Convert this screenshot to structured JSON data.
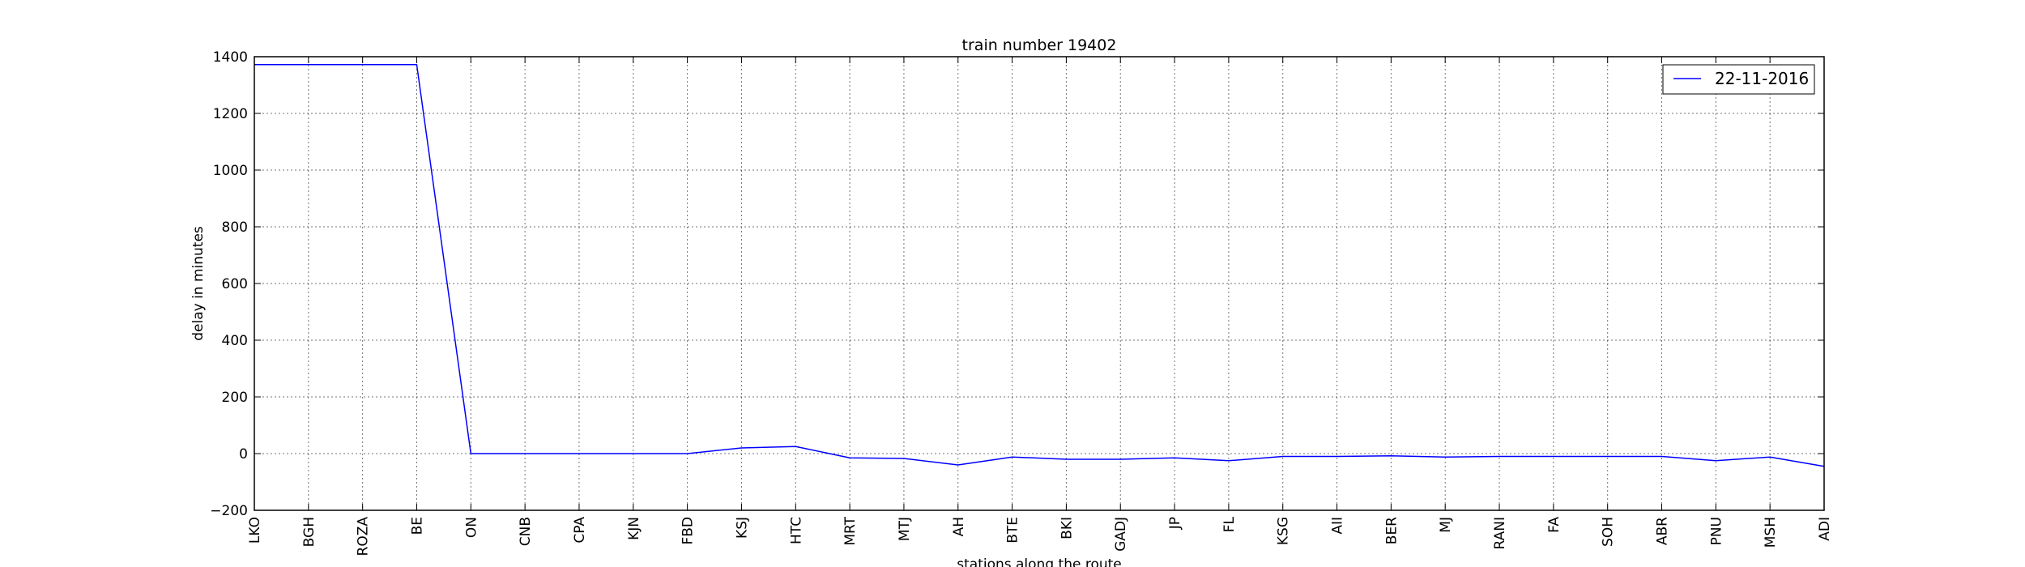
{
  "chart_data": {
    "type": "line",
    "title": "train number 19402",
    "xlabel": "stations along the route",
    "ylabel": "delay in minutes",
    "categories": [
      "LKO",
      "BGH",
      "ROZA",
      "BE",
      "ON",
      "CNB",
      "CPA",
      "KJN",
      "FBD",
      "KSJ",
      "HTC",
      "MRT",
      "MTJ",
      "AH",
      "BTE",
      "BKI",
      "GADJ",
      "JP",
      "FL",
      "KSG",
      "AII",
      "BER",
      "MJ",
      "RANI",
      "FA",
      "SOH",
      "ABR",
      "PNU",
      "MSH",
      "ADI"
    ],
    "series": [
      {
        "name": "22-11-2016",
        "color": "#0000ff",
        "values": [
          1372,
          1372,
          1372,
          1372,
          0,
          0,
          0,
          0,
          0,
          20,
          25,
          -15,
          -17,
          -40,
          -12,
          -20,
          -20,
          -15,
          -25,
          -10,
          -10,
          -8,
          -12,
          -10,
          -10,
          -10,
          -10,
          -25,
          -12,
          -45
        ]
      }
    ],
    "ylim": [
      -200,
      1400
    ],
    "yticks": [
      -200,
      0,
      200,
      400,
      600,
      800,
      1000,
      1200,
      1400
    ],
    "ytick_labels": [
      "−200",
      "0",
      "200",
      "400",
      "600",
      "800",
      "1000",
      "1200",
      "1400"
    ],
    "grid": true,
    "legend_position": "top-right"
  }
}
